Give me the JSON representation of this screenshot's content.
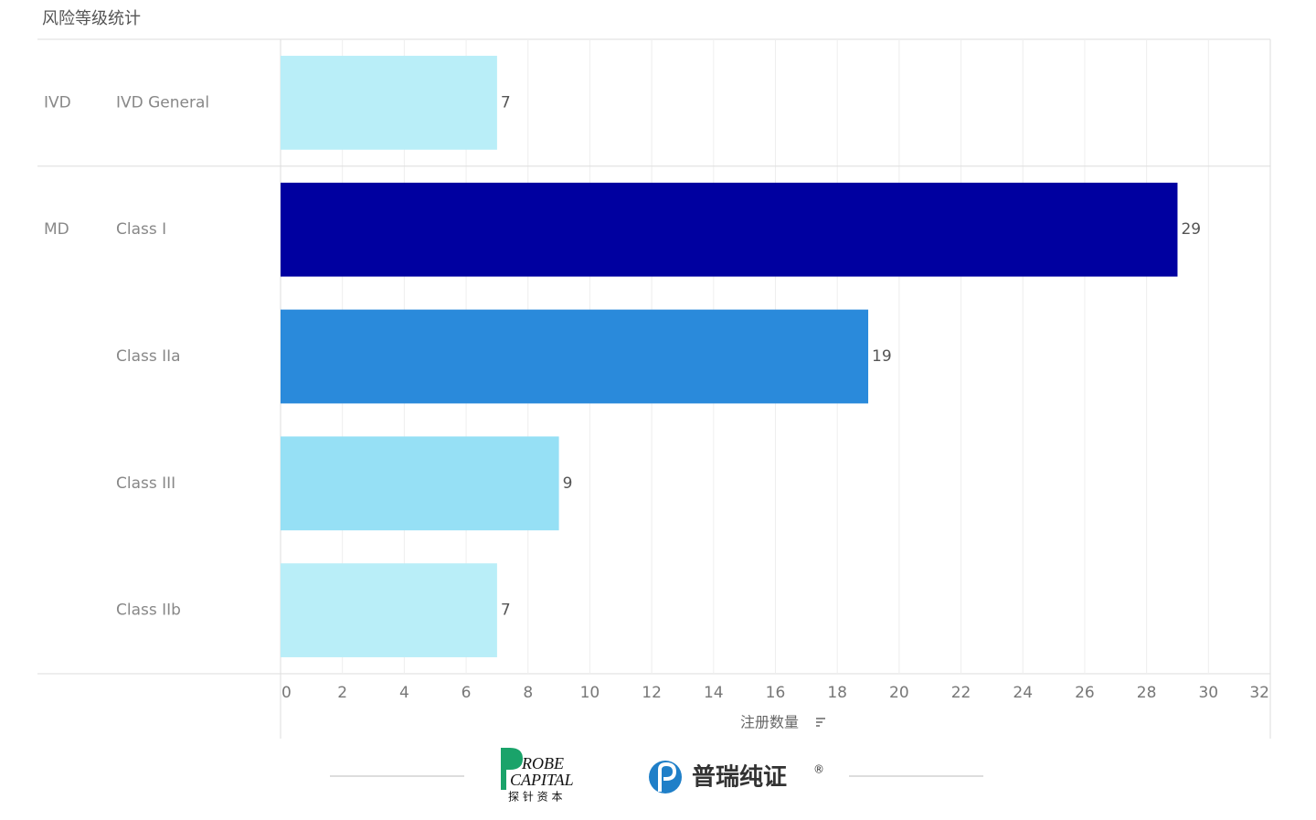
{
  "chart_data": {
    "type": "bar",
    "orientation": "horizontal",
    "title": "风险等级统计",
    "groups": [
      "IVD",
      "MD",
      null,
      null,
      null
    ],
    "categories": [
      "IVD General",
      "Class I",
      "Class IIa",
      "Class III",
      "Class IIb"
    ],
    "values": [
      7,
      29,
      19,
      9,
      7
    ],
    "colors": [
      "#b9eef8",
      "#0000a0",
      "#2a8adb",
      "#96e0f5",
      "#b9eef8"
    ],
    "xlim": [
      0,
      32
    ],
    "xticks": [
      0,
      2,
      4,
      6,
      8,
      10,
      12,
      14,
      16,
      18,
      20,
      22,
      24,
      26,
      28,
      30,
      32
    ],
    "x_label": "注册数量",
    "grid": true
  },
  "footer": {
    "brand1": {
      "line1": "ROBE",
      "line2": "CAPITAL",
      "line3": "探 针 资 本"
    },
    "brand2": {
      "name": "普瑞纯证",
      "mark": "®"
    }
  }
}
